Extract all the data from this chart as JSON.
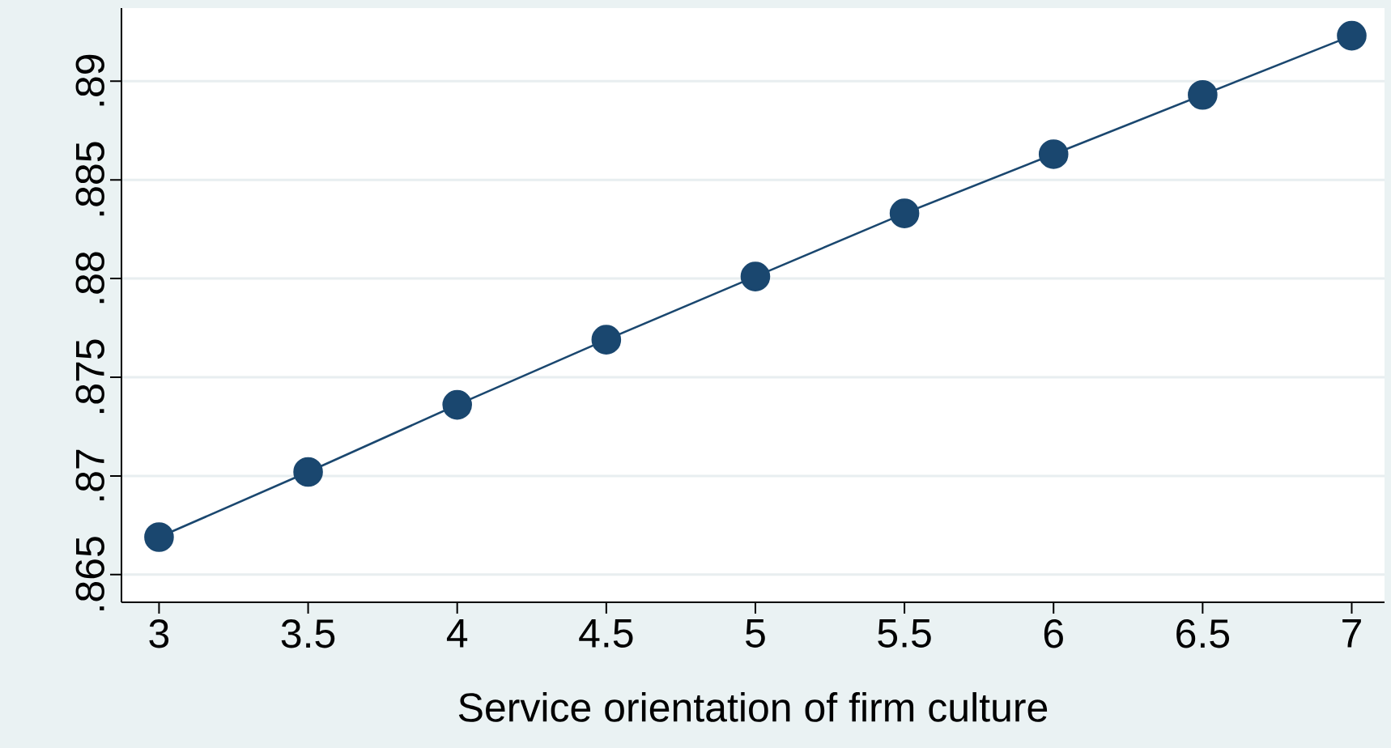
{
  "chart_data": {
    "type": "line",
    "xlabel": "Service orientation of firm culture",
    "x": [
      3,
      3.5,
      4,
      4.5,
      5,
      5.5,
      6,
      6.5,
      7
    ],
    "series": [
      {
        "color": "#1a476f",
        "values": [
          0.8669,
          0.8702,
          0.8736,
          0.8769,
          0.8801,
          0.8833,
          0.8863,
          0.8893,
          0.8923
        ]
      }
    ],
    "xlim": [
      2.874,
      7.11
    ],
    "ylim": [
      0.8636,
      0.8937
    ],
    "xticks": [
      3,
      3.5,
      4,
      4.5,
      5,
      5.5,
      6,
      6.5,
      7
    ],
    "yticks": [
      {
        "value": 0.865,
        "label": ".865"
      },
      {
        "value": 0.87,
        "label": ".87"
      },
      {
        "value": 0.875,
        "label": ".875"
      },
      {
        "value": 0.88,
        "label": ".88"
      },
      {
        "value": 0.885,
        "label": ".885"
      },
      {
        "value": 0.89,
        "label": ".89"
      }
    ],
    "grid": "y",
    "marker": "circle",
    "line_style": "solid"
  }
}
